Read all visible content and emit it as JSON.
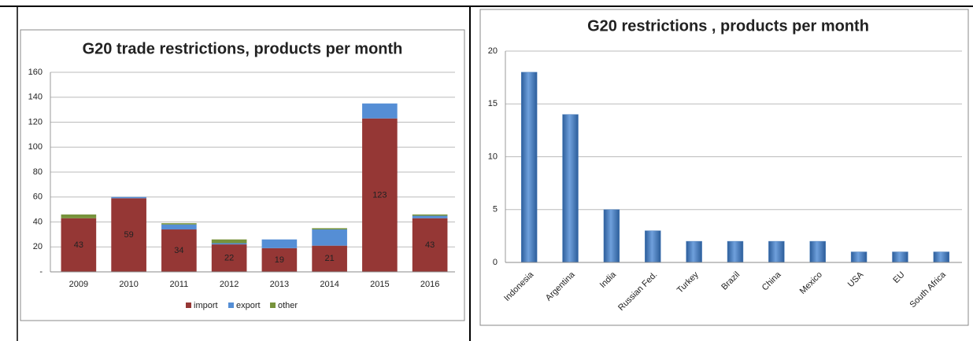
{
  "chart_data": [
    {
      "type": "stacked_bar",
      "title": "G20 trade restrictions, products per month",
      "categories": [
        "2009",
        "2010",
        "2011",
        "2012",
        "2013",
        "2014",
        "2015",
        "2016"
      ],
      "series": [
        {
          "name": "import",
          "color": "#953735",
          "values": [
            43,
            59,
            34,
            22,
            19,
            21,
            123,
            43
          ]
        },
        {
          "name": "export",
          "color": "#558ed5",
          "values": [
            0,
            1,
            4,
            1,
            7,
            13,
            12,
            2
          ]
        },
        {
          "name": "other",
          "color": "#77933c",
          "values": [
            3,
            0,
            1,
            3,
            0,
            1,
            0,
            1
          ]
        }
      ],
      "ylim": [
        0,
        160
      ],
      "yticks": [
        {
          "value": 0,
          "label": "-"
        },
        20,
        40,
        60,
        80,
        100,
        120,
        140,
        160
      ],
      "grid": true,
      "legend": "bottom"
    },
    {
      "type": "bar",
      "title": "G20 restrictions , products per month",
      "categories": [
        "Indonesia",
        "Argentina",
        "India",
        "Russian Fed.",
        "Turkey",
        "Brazil",
        "China",
        "Mexico",
        "USA",
        "EU",
        "South Africa"
      ],
      "values": [
        18,
        14,
        5,
        3,
        2,
        2,
        2,
        2,
        1,
        1,
        1
      ],
      "color": "#4f81bd",
      "ylim": [
        0,
        20
      ],
      "yticks": [
        0,
        5,
        10,
        15,
        20
      ],
      "grid": true
    }
  ]
}
